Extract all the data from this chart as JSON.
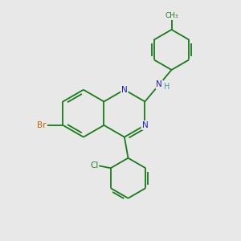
{
  "background_color": "#e8e8e8",
  "bond_color": "#1a7a1a",
  "atom_colors": {
    "N": "#2020cc",
    "Br": "#cc6000",
    "Cl": "#228822",
    "C": "#1a7a1a",
    "H": "#4499aa"
  },
  "figure_size": [
    3.0,
    3.0
  ],
  "dpi": 100,
  "lw": 1.3
}
